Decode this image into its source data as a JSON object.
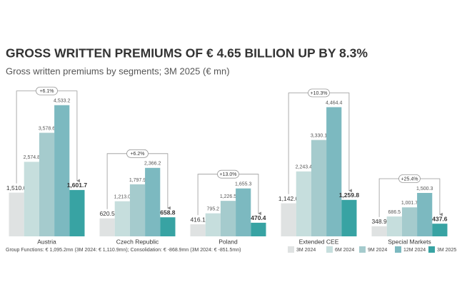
{
  "chart_data": {
    "type": "bar",
    "title": "GROSS WRITTEN PREMIUMS OF € 4.65 BILLION UP BY 8.3%",
    "subtitle": "Gross written premiums by segments; 3M 2025 (€ mn)",
    "categories": [
      "Austria",
      "Czech Republic",
      "Poland",
      "Extended CEE",
      "Special Markets"
    ],
    "series": [
      {
        "name": "3M 2024",
        "color": "#dfe2e2",
        "values": [
          1510.0,
          620.5,
          416.1,
          1142.0,
          348.9
        ],
        "value_labels": [
          "1,510.0",
          "620.5",
          "416.1",
          "1,142.0",
          "348.9"
        ]
      },
      {
        "name": "6M 2024",
        "color": "#c6dedd",
        "values": [
          2574.8,
          1213.0,
          795.2,
          2243.4,
          686.5
        ],
        "value_labels": [
          "2,574.8",
          "1,213.0",
          "795.2",
          "2,243.4",
          "686.5"
        ]
      },
      {
        "name": "9M 2024",
        "color": "#a5cbcd",
        "values": [
          3578.6,
          1797.9,
          1226.5,
          3330.1,
          1001.7
        ],
        "value_labels": [
          "3,578.6",
          "1,797.9",
          "1,226.5",
          "3,330.1",
          "1,001.7"
        ]
      },
      {
        "name": "12M 2024",
        "color": "#7cb9c0",
        "values": [
          4533.2,
          2366.2,
          1655.3,
          4464.4,
          1500.3
        ],
        "value_labels": [
          "4,533.2",
          "2,366.2",
          "1,655.3",
          "4,464.4",
          "1,500.3"
        ]
      },
      {
        "name": "3M 2025",
        "color": "#38a3a3",
        "values": [
          1601.7,
          658.8,
          470.4,
          1259.8,
          437.6
        ],
        "value_labels": [
          "1,601.7",
          "658.8",
          "470.4",
          "1,259.8",
          "437.6"
        ]
      }
    ],
    "growth_labels": [
      "+6.1%",
      "+6.2%",
      "+13.0%",
      "+10.3%",
      "+25.4%"
    ],
    "footnote": "Group Functions: € 1,095.2mn (3M 2024: € 1,110.9mn); Consolidation: € -868.9mn (3M 2024: € -851.5mn)",
    "ylim": [
      0,
      4600
    ]
  }
}
